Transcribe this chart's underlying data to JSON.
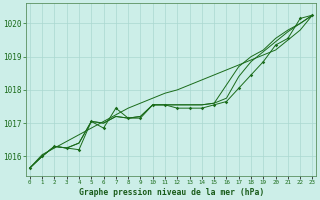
{
  "hours": [
    0,
    1,
    2,
    3,
    4,
    5,
    6,
    7,
    8,
    9,
    10,
    11,
    12,
    13,
    14,
    15,
    16,
    17,
    18,
    19,
    20,
    21,
    22,
    23
  ],
  "pressure_main": [
    1015.65,
    1016.0,
    1016.3,
    1016.25,
    1016.2,
    1017.05,
    1016.85,
    1017.45,
    1017.15,
    1017.15,
    1017.55,
    1017.55,
    1017.45,
    1017.45,
    1017.45,
    1017.55,
    1017.65,
    1018.05,
    1018.45,
    1018.85,
    1019.35,
    1019.55,
    1020.15,
    1020.25
  ],
  "pressure_line2": [
    1015.65,
    1016.0,
    1016.3,
    1016.25,
    1016.4,
    1017.05,
    1017.0,
    1017.2,
    1017.15,
    1017.2,
    1017.55,
    1017.55,
    1017.55,
    1017.55,
    1017.55,
    1017.6,
    1017.75,
    1018.4,
    1018.85,
    1019.15,
    1019.45,
    1019.75,
    1020.0,
    1020.25
  ],
  "pressure_line3": [
    1015.65,
    1016.0,
    1016.3,
    1016.25,
    1016.4,
    1017.05,
    1017.0,
    1017.2,
    1017.15,
    1017.2,
    1017.55,
    1017.55,
    1017.55,
    1017.55,
    1017.55,
    1017.6,
    1018.15,
    1018.7,
    1019.0,
    1019.2,
    1019.55,
    1019.8,
    1020.0,
    1020.25
  ],
  "pressure_straight": [
    1015.65,
    1016.05,
    1016.25,
    1016.45,
    1016.65,
    1016.85,
    1017.05,
    1017.25,
    1017.45,
    1017.6,
    1017.75,
    1017.9,
    1018.0,
    1018.15,
    1018.3,
    1018.45,
    1018.6,
    1018.75,
    1018.9,
    1019.05,
    1019.2,
    1019.5,
    1019.8,
    1020.25
  ],
  "ylim": [
    1015.4,
    1020.6
  ],
  "yticks": [
    1016,
    1017,
    1018,
    1019,
    1020
  ],
  "xlim": [
    -0.3,
    23.3
  ],
  "xticks": [
    0,
    1,
    2,
    3,
    4,
    5,
    6,
    7,
    8,
    9,
    10,
    11,
    12,
    13,
    14,
    15,
    16,
    17,
    18,
    19,
    20,
    21,
    22,
    23
  ],
  "line_color": "#1a6b1a",
  "dot_color": "#1a6b1a",
  "bg_plot": "#cceee8",
  "bg_fig": "#cceee8",
  "grid_color": "#aad8d0",
  "xlabel": "Graphe pression niveau de la mer (hPa)",
  "xlabel_color": "#1a5c1a",
  "tick_color": "#1a6b1a",
  "axis_color": "#5a9060"
}
